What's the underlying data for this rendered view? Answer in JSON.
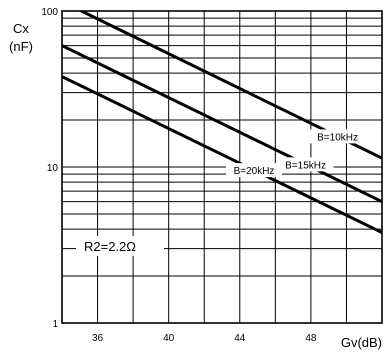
{
  "chart_data": {
    "type": "line",
    "title": "",
    "xlabel": "Gv(dB)",
    "ylabel": [
      "Cx",
      "(nF)"
    ],
    "x_scale": "linear",
    "y_scale": "log",
    "xlim": [
      34,
      52
    ],
    "ylim": [
      1,
      100
    ],
    "x_ticks": [
      36,
      40,
      44,
      48
    ],
    "y_ticks": [
      1,
      10,
      100
    ],
    "grid": true,
    "series": [
      {
        "name": "B=10kHz",
        "x": [
          34,
          52
        ],
        "y": [
          115,
          11.4
        ]
      },
      {
        "name": "B=15kHz",
        "x": [
          34,
          52
        ],
        "y": [
          60,
          6
        ]
      },
      {
        "name": "B=20kHz",
        "x": [
          34,
          52
        ],
        "y": [
          38,
          3.8
        ]
      }
    ],
    "annotations": [
      {
        "text": "R2=2.2Ω"
      }
    ]
  }
}
